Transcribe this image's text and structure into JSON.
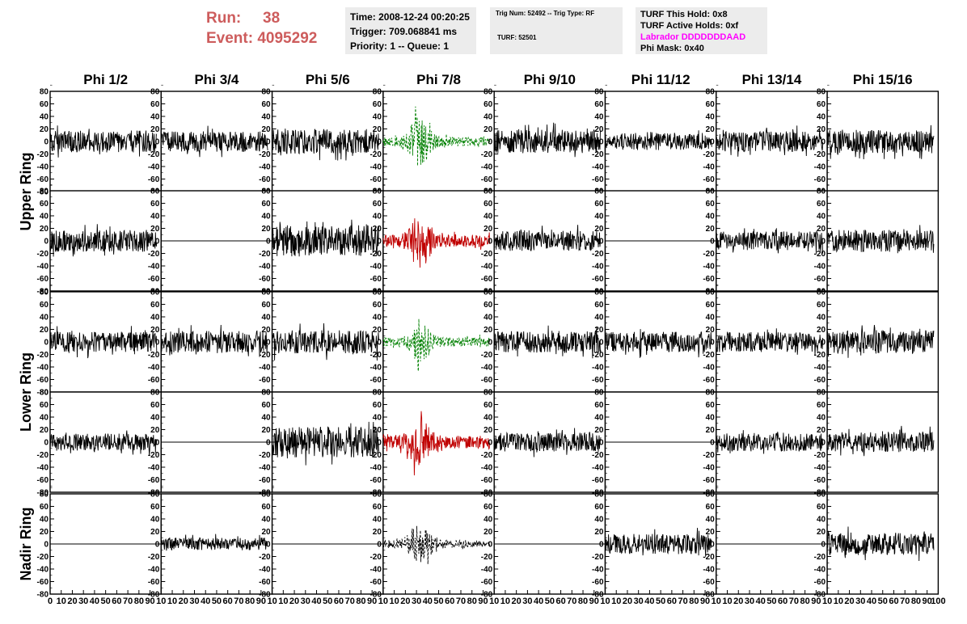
{
  "header": {
    "run_label": "Run:",
    "run_value": "38",
    "event_label": "Event:",
    "event_value": "4095292",
    "time": "Time: 2008-12-24 00:20:25",
    "trigger": "Trigger: 709.068841 ms",
    "priority": "Priority: 1 -- Queue: 1",
    "trig_num": "Trig Num: 52492 -- Trig Type: RF",
    "turf": "TURF: 52501",
    "turf_this_hold": "TURF This Hold: 0x8",
    "turf_active_holds": "TURF Active Holds: 0xf",
    "labrador": "Labrador DDDDDDDAAD",
    "phi_mask": "Phi Mask: 0x40",
    "labrador_color": "#ff00ff",
    "run_color": "#cd5c5c"
  },
  "chart_data": {
    "type": "line",
    "phi_columns": [
      "Phi 1/2",
      "Phi 3/4",
      "Phi 5/6",
      "Phi 7/8",
      "Phi 9/10",
      "Phi 11/12",
      "Phi 13/14",
      "Phi 15/16"
    ],
    "ring_labels": [
      "Upper Ring",
      "Lower Ring",
      "Nadir Ring"
    ],
    "ring_rows": [
      2,
      2,
      1
    ],
    "xlim": [
      0,
      100
    ],
    "ylim": [
      -80,
      80
    ],
    "y_ticks": [
      -80,
      -60,
      -40,
      -20,
      0,
      20,
      40,
      60,
      80
    ],
    "x_ticks": [
      0,
      10,
      20,
      30,
      40,
      50,
      60,
      70,
      80,
      90
    ],
    "x_tick_labels_first": [
      "0",
      "10",
      "20",
      "30",
      "40",
      "50",
      "60",
      "70",
      "80",
      "90",
      "10"
    ],
    "x_tick_labels_middle": [
      "10",
      "20",
      "30",
      "40",
      "50",
      "60",
      "70",
      "80",
      "90",
      "10"
    ],
    "x_tick_labels_last": [
      "10",
      "20",
      "30",
      "40",
      "50",
      "60",
      "70",
      "80",
      "90",
      "100"
    ],
    "trace_color_default": "#000000",
    "trace_color_trig_v": "#008000",
    "trace_color_trig_h": "#c00000",
    "rows": [
      [
        {
          "amp": 14,
          "color": "#000000",
          "burst": 0
        },
        {
          "amp": 13,
          "color": "#000000",
          "burst": 0
        },
        {
          "amp": 16,
          "color": "#000000",
          "burst": 0
        },
        {
          "amp": 6,
          "color": "#008000",
          "burst": 28,
          "dashed": true
        },
        {
          "amp": 15,
          "color": "#000000",
          "burst": 0
        },
        {
          "amp": 11,
          "color": "#000000",
          "burst": 0
        },
        {
          "amp": 13,
          "color": "#000000",
          "burst": 0
        },
        {
          "amp": 15,
          "color": "#000000",
          "burst": 0
        }
      ],
      [
        {
          "amp": 14,
          "color": "#000000",
          "burst": 0
        },
        {
          "amp": 0,
          "color": "#000000",
          "burst": 0
        },
        {
          "amp": 20,
          "color": "#000000",
          "burst": 0
        },
        {
          "amp": 8,
          "color": "#c00000",
          "burst": 28,
          "dashed": false
        },
        {
          "amp": 13,
          "color": "#000000",
          "burst": 0
        },
        {
          "amp": 0,
          "color": "#000000",
          "burst": 0
        },
        {
          "amp": 12,
          "color": "#000000",
          "burst": 0
        },
        {
          "amp": 14,
          "color": "#000000",
          "burst": 0
        }
      ],
      [
        {
          "amp": 13,
          "color": "#000000",
          "burst": 0
        },
        {
          "amp": 14,
          "color": "#000000",
          "burst": 0
        },
        {
          "amp": 15,
          "color": "#000000",
          "burst": 0
        },
        {
          "amp": 6,
          "color": "#008000",
          "burst": 20,
          "dashed": true
        },
        {
          "amp": 14,
          "color": "#000000",
          "burst": 0
        },
        {
          "amp": 13,
          "color": "#000000",
          "burst": 0
        },
        {
          "amp": 13,
          "color": "#000000",
          "burst": 0
        },
        {
          "amp": 15,
          "color": "#000000",
          "burst": 0
        }
      ],
      [
        {
          "amp": 11,
          "color": "#000000",
          "burst": 0
        },
        {
          "amp": 0,
          "color": "#000000",
          "burst": 0
        },
        {
          "amp": 20,
          "color": "#000000",
          "burst": 0
        },
        {
          "amp": 8,
          "color": "#c00000",
          "burst": 26,
          "dashed": false
        },
        {
          "amp": 12,
          "color": "#000000",
          "burst": 0
        },
        {
          "amp": 0,
          "color": "#000000",
          "burst": 0
        },
        {
          "amp": 12,
          "color": "#000000",
          "burst": 0
        },
        {
          "amp": 13,
          "color": "#000000",
          "burst": 0
        }
      ],
      [
        {
          "amp": 0,
          "color": "#000000",
          "burst": 0
        },
        {
          "amp": 8,
          "color": "#000000",
          "burst": 0
        },
        {
          "amp": 0,
          "color": "#000000",
          "burst": 0
        },
        {
          "amp": 5,
          "color": "#000000",
          "burst": 24,
          "dashed": true
        },
        {
          "amp": 0,
          "color": "#000000",
          "burst": 0
        },
        {
          "amp": 13,
          "color": "#000000",
          "burst": 0
        },
        {
          "amp": 0,
          "color": "#000000",
          "burst": 0
        },
        {
          "amp": 14,
          "color": "#000000",
          "burst": 0
        }
      ]
    ]
  }
}
